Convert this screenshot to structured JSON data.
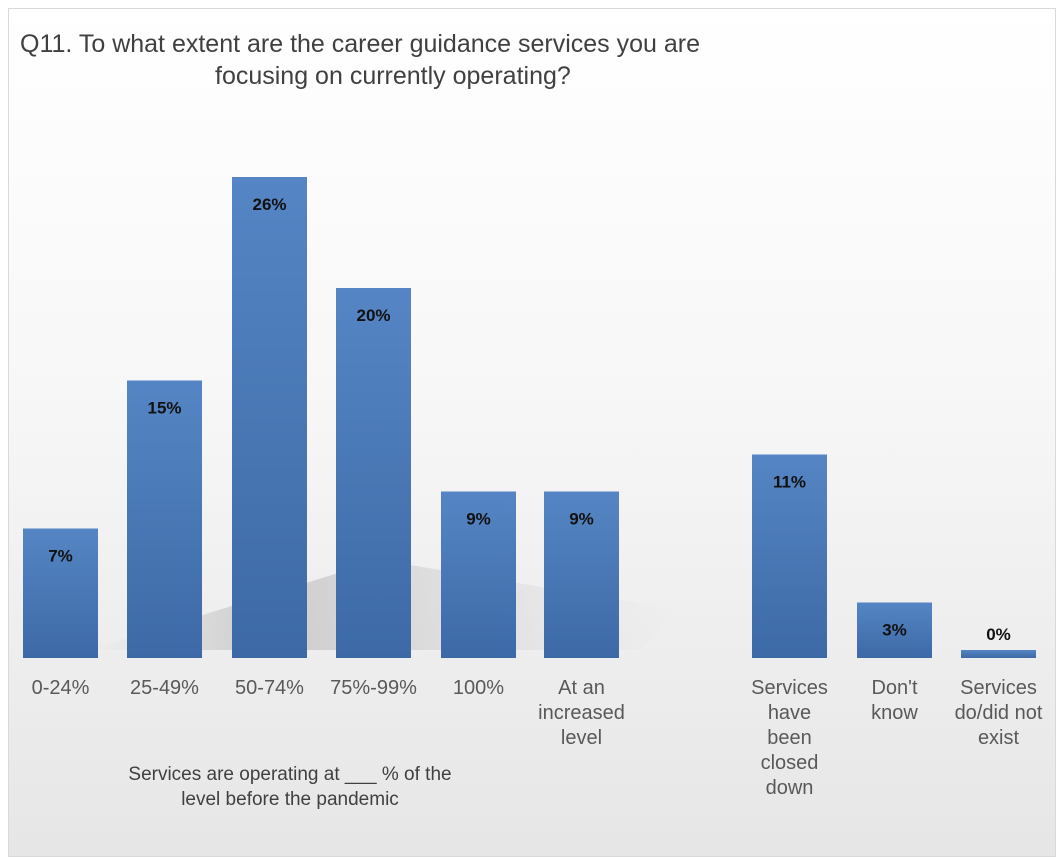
{
  "chart_data": {
    "type": "bar",
    "title_line1": "Q11. To what extent are the career guidance services you are",
    "title_line2": "focusing on currently operating?",
    "categories": [
      "0-24%",
      "25-49%",
      "50-74%",
      "75%-99%",
      "100%",
      "At an increased level",
      "Services have been closed down",
      "Don't know",
      "Services do/did not exist"
    ],
    "category_lines": [
      [
        "0-24%"
      ],
      [
        "25-49%"
      ],
      [
        "50-74%"
      ],
      [
        "75%-99%"
      ],
      [
        "100%"
      ],
      [
        "At an",
        "increased",
        "level"
      ],
      [
        "Services",
        "have",
        "been",
        "closed",
        "down"
      ],
      [
        "Don't",
        "know"
      ],
      [
        "Services",
        "do/did not",
        "exist"
      ]
    ],
    "values": [
      7,
      15,
      26,
      20,
      9,
      9,
      11,
      3,
      0
    ],
    "data_labels": [
      "7%",
      "15%",
      "26%",
      "20%",
      "9%",
      "9%",
      "11%",
      "3%",
      "0%"
    ],
    "ylim": [
      0,
      26
    ],
    "bar_color": "#4a78b4",
    "group_label_line1": "Services are operating at ___ % of the",
    "group_label_line2": "level before the pandemic",
    "grid": false,
    "legend": "none"
  }
}
